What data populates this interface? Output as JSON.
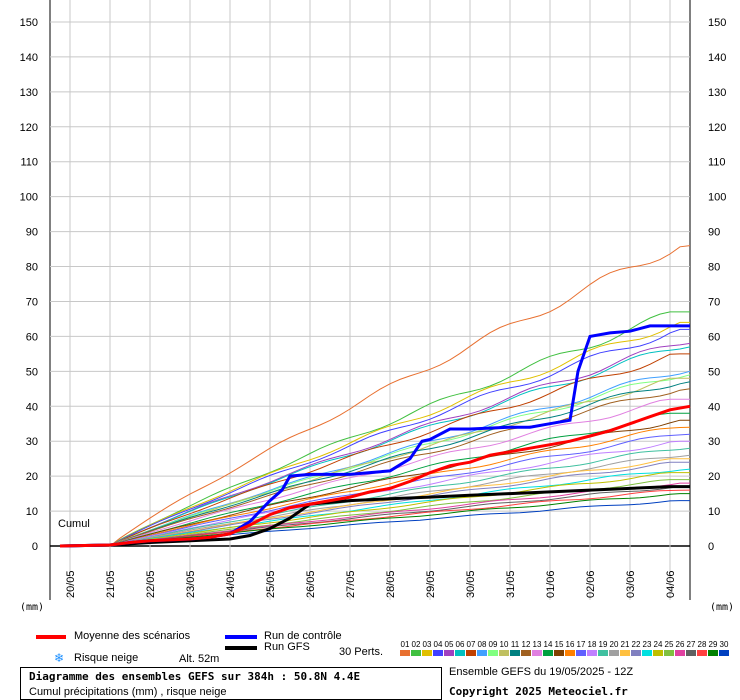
{
  "chart_data": {
    "type": "line",
    "title": "Diagramme des ensembles GEFS sur 384h : 50.8N 4.4E",
    "subtitle": "Cumul précipitations (mm) , risque neige",
    "ylabel_left": "(mm)",
    "ylabel_right": "(mm)",
    "inner_label": "Cumul",
    "ylim": [
      0,
      150
    ],
    "yticks": [
      0,
      10,
      20,
      30,
      40,
      50,
      60,
      70,
      80,
      90,
      100,
      110,
      120,
      130,
      140,
      150
    ],
    "xticks": [
      "20/05",
      "21/05",
      "22/05",
      "23/05",
      "24/05",
      "25/05",
      "26/05",
      "27/05",
      "28/05",
      "29/05",
      "30/05",
      "31/05",
      "01/06",
      "02/06",
      "03/06",
      "04/06"
    ],
    "xrange_days": [
      19.5,
      35.5
    ],
    "grid": true,
    "series": [
      {
        "name": "Moyenne des scénarios",
        "color": "#ff0000",
        "x": [
          19.75,
          21.0,
          21.5,
          22.0,
          23.0,
          23.5,
          24.0,
          24.5,
          25.0,
          25.5,
          26.0,
          26.5,
          27.0,
          27.5,
          28.0,
          28.5,
          29.0,
          29.5,
          30.0,
          30.5,
          31.0,
          31.5,
          32.0,
          32.5,
          33.0,
          33.5,
          34.0,
          34.5,
          35.0,
          35.5
        ],
        "y": [
          0,
          0.3,
          1.0,
          1.5,
          2.0,
          2.5,
          3.5,
          6.0,
          9.0,
          11.0,
          12.0,
          13.0,
          14.0,
          15.5,
          16.5,
          18.5,
          21.0,
          23.0,
          24.0,
          26.0,
          27.0,
          28.0,
          29.0,
          30.0,
          31.5,
          33.0,
          35.0,
          37.0,
          39.0,
          40.0
        ]
      },
      {
        "name": "Run de contrôle",
        "color": "#0000ff",
        "x": [
          19.75,
          21.0,
          21.5,
          22.0,
          23.0,
          23.5,
          24.0,
          24.5,
          25.0,
          25.3,
          25.5,
          26.0,
          26.5,
          27.0,
          27.5,
          28.0,
          28.5,
          28.8,
          29.0,
          29.5,
          30.0,
          31.0,
          31.5,
          32.0,
          32.5,
          32.7,
          33.0,
          33.5,
          34.0,
          34.5,
          35.0,
          35.5
        ],
        "y": [
          0,
          0.3,
          1.0,
          1.5,
          2.0,
          2.5,
          3.5,
          7.0,
          13.0,
          16.0,
          20.0,
          20.5,
          20.5,
          20.5,
          21.0,
          21.5,
          25.0,
          30.0,
          30.5,
          33.5,
          33.5,
          34.0,
          34.0,
          35.0,
          36.0,
          50.0,
          60.0,
          61.0,
          61.5,
          63.0,
          63.0,
          63.0
        ]
      },
      {
        "name": "Run GFS",
        "color": "#000000",
        "x": [
          19.75,
          21.0,
          22.0,
          23.0,
          24.0,
          24.5,
          25.0,
          25.5,
          26.0,
          27.0,
          28.0,
          29.0,
          30.0,
          31.0,
          32.0,
          33.0,
          34.0,
          35.0,
          35.5
        ],
        "y": [
          0,
          0.3,
          1.0,
          1.5,
          2.0,
          3.0,
          5.0,
          8.0,
          12.0,
          13.0,
          13.5,
          14.0,
          14.5,
          15.0,
          15.5,
          16.0,
          16.5,
          17.0,
          17.0
        ]
      }
    ],
    "perturbation_end_values": [
      86,
      67,
      64,
      62,
      58,
      57,
      55,
      50,
      49,
      48,
      47,
      45,
      42,
      38,
      36,
      34,
      32,
      30,
      28,
      26,
      25,
      24,
      22,
      21,
      19,
      18,
      17,
      16,
      15,
      13
    ]
  },
  "legend": {
    "mean": "Moyenne des scénarios",
    "control": "Run de contrôle",
    "gfs": "Run GFS",
    "snow": "Risque neige",
    "altitude": "Alt. 52m",
    "perts_label": "30 Perts.",
    "pert_numbers": [
      "01",
      "02",
      "03",
      "04",
      "05",
      "06",
      "07",
      "08",
      "09",
      "10",
      "11",
      "12",
      "13",
      "14",
      "15",
      "16",
      "17",
      "18",
      "19",
      "20",
      "21",
      "22",
      "23",
      "24",
      "25",
      "26",
      "27",
      "28",
      "29",
      "30"
    ],
    "pert_colors": [
      "#e87030",
      "#40c040",
      "#e0c000",
      "#4040ff",
      "#a040c0",
      "#00c0c0",
      "#c04000",
      "#40a0ff",
      "#80ff80",
      "#c0c060",
      "#008080",
      "#a06020",
      "#e080e0",
      "#00a040",
      "#804000",
      "#ff8000",
      "#6060ff",
      "#c080ff",
      "#40c0a0",
      "#a0a0a0",
      "#ffc040",
      "#8080c0",
      "#00e0e0",
      "#c0c000",
      "#80c040",
      "#e040a0",
      "#606060",
      "#ff4040",
      "#008000",
      "#0040c0"
    ]
  },
  "info": {
    "run": "Ensemble GEFS du 19/05/2025 - 12Z",
    "copyright": "Copyright 2025 Meteociel.fr"
  }
}
